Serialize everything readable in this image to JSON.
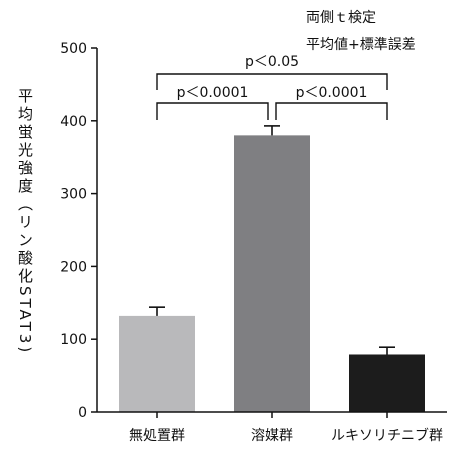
{
  "chart_data": {
    "type": "bar",
    "categories": [
      "無処置群",
      "溶媒群",
      "ルキソリチニブ群"
    ],
    "values": [
      132,
      380,
      79
    ],
    "errors": [
      12,
      13,
      10
    ],
    "colors": [
      "#b9b9bb",
      "#7f7f82",
      "#1c1c1c"
    ],
    "ylabel": "平均蛍光強度（リン酸化STAT3)",
    "ylim": [
      0,
      500
    ],
    "yticks": [
      0,
      100,
      200,
      300,
      400,
      500
    ],
    "annotations": [
      "両側ｔ検定",
      "平均値+標準誤差"
    ],
    "significance": [
      {
        "from": 0,
        "to": 1,
        "label": "p＜0.0001"
      },
      {
        "from": 1,
        "to": 2,
        "label": "p＜0.0001"
      },
      {
        "from": 0,
        "to": 2,
        "label": "p＜0.05"
      }
    ]
  }
}
